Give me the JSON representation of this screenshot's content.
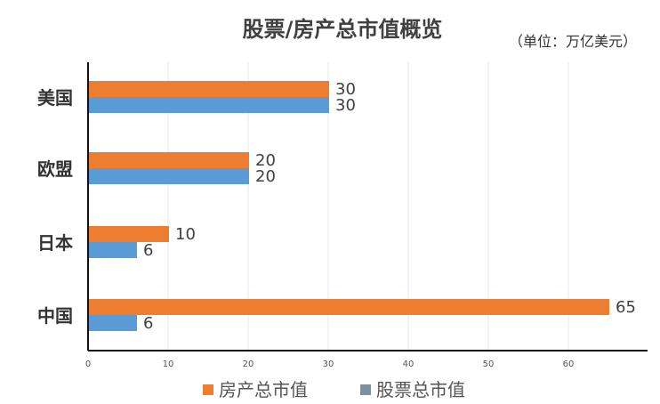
{
  "chart_data": {
    "type": "bar",
    "orientation": "horizontal",
    "title": "股票/房产总市值概览",
    "unit_note": "（单位：万亿美元）",
    "categories": [
      "美国",
      "欧盟",
      "日本",
      "中国"
    ],
    "series": [
      {
        "name": "房产总市值",
        "values": [
          30,
          20,
          10,
          65
        ]
      },
      {
        "name": "股票总市值",
        "values": [
          30,
          20,
          6,
          6
        ]
      }
    ],
    "xlim": [
      0,
      70
    ],
    "x_ticks": [
      "0",
      "10",
      "20",
      "30",
      "40",
      "50",
      "60"
    ],
    "grid": true,
    "legend_position": "bottom-center"
  },
  "colors": {
    "series": [
      "#ed7d31",
      "#5b9bd5"
    ],
    "legend_swatch_stock": "#7f8ea3",
    "axis": "#111111",
    "grid": "#e7e7e7",
    "text": "#404040"
  }
}
